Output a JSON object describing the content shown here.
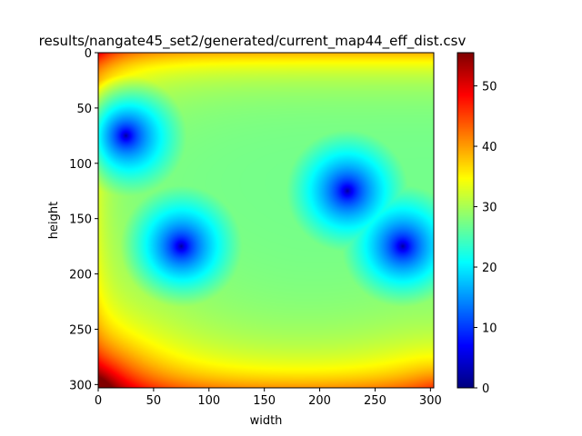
{
  "chart_data": {
    "type": "heatmap",
    "title": "results/nangate45_set2/generated/current_map44_eff_dist.csv",
    "xlabel": "width",
    "ylabel": "height",
    "xlim": [
      0,
      303
    ],
    "ylim": [
      303,
      0
    ],
    "x_ticks": [
      0,
      50,
      100,
      150,
      200,
      250,
      300
    ],
    "y_ticks": [
      0,
      50,
      100,
      150,
      200,
      250,
      300
    ],
    "colormap": "jet",
    "colorbar": {
      "range": [
        0,
        55.5
      ],
      "ticks": [
        0,
        10,
        20,
        30,
        40,
        50
      ]
    },
    "sources": [
      {
        "x": 25,
        "y": 75
      },
      {
        "x": 75,
        "y": 175
      },
      {
        "x": 225,
        "y": 125
      },
      {
        "x": 275,
        "y": 175
      }
    ],
    "approx_values": {
      "at_sources": 0,
      "center_region": 28,
      "top_edge": 38,
      "bottom_edge": 40,
      "top_left_corner": 45,
      "bottom_left_corner": 55,
      "bottom_right_corner": 48
    }
  }
}
